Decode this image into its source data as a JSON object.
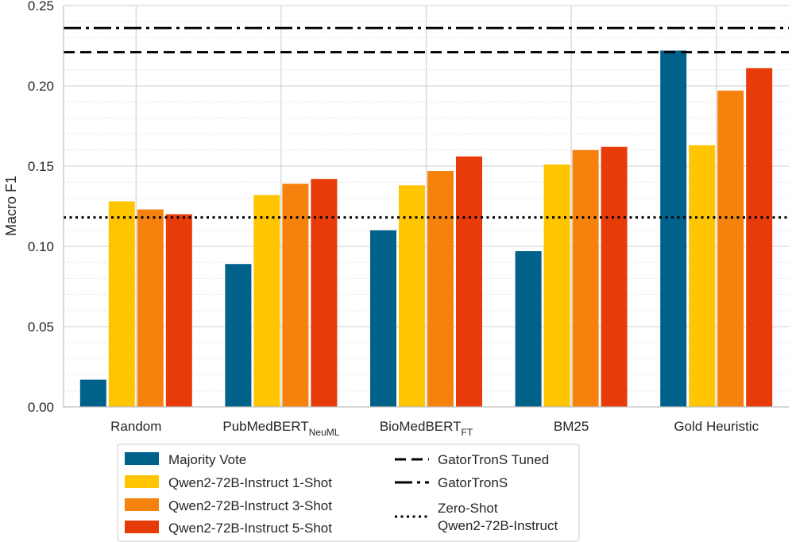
{
  "chart_data": {
    "type": "bar",
    "title": "",
    "xlabel": "",
    "ylabel": "Macro F1",
    "ylim": [
      0,
      0.25
    ],
    "yticks": [
      "0.00",
      "0.05",
      "0.10",
      "0.15",
      "0.20",
      "0.25"
    ],
    "grid": "major and minor horizontal, major vertical",
    "categories": [
      {
        "main": "Random",
        "sub": ""
      },
      {
        "main": "PubMedBERT",
        "sub": "NeuML"
      },
      {
        "main": "BioMedBERT",
        "sub": "FT"
      },
      {
        "main": "BM25",
        "sub": ""
      },
      {
        "main": "Gold Heuristic",
        "sub": ""
      }
    ],
    "series": [
      {
        "name": "Majority Vote",
        "color": "#00628b",
        "values": [
          0.017,
          0.089,
          0.11,
          0.097,
          0.222
        ]
      },
      {
        "name": "Qwen2-72B-Instruct 1-Shot",
        "color": "#ffc500",
        "values": [
          0.128,
          0.132,
          0.138,
          0.151,
          0.163
        ]
      },
      {
        "name": "Qwen2-72B-Instruct 3-Shot",
        "color": "#f5820d",
        "values": [
          0.123,
          0.139,
          0.147,
          0.16,
          0.197
        ]
      },
      {
        "name": "Qwen2-72B-Instruct 5-Shot",
        "color": "#e83b0a",
        "values": [
          0.12,
          0.142,
          0.156,
          0.162,
          0.211
        ]
      }
    ],
    "reference_lines": [
      {
        "name": "GatorTronS Tuned",
        "value": 0.221,
        "style": "dashed"
      },
      {
        "name": "GatorTronS",
        "value": 0.236,
        "style": "dashdot"
      },
      {
        "name": "Zero-Shot Qwen2-72B-Instruct",
        "value": 0.118,
        "style": "dotted",
        "label_lines": [
          "Zero-Shot",
          "Qwen2-72B-Instruct"
        ]
      }
    ],
    "legend_position": "bottom"
  }
}
